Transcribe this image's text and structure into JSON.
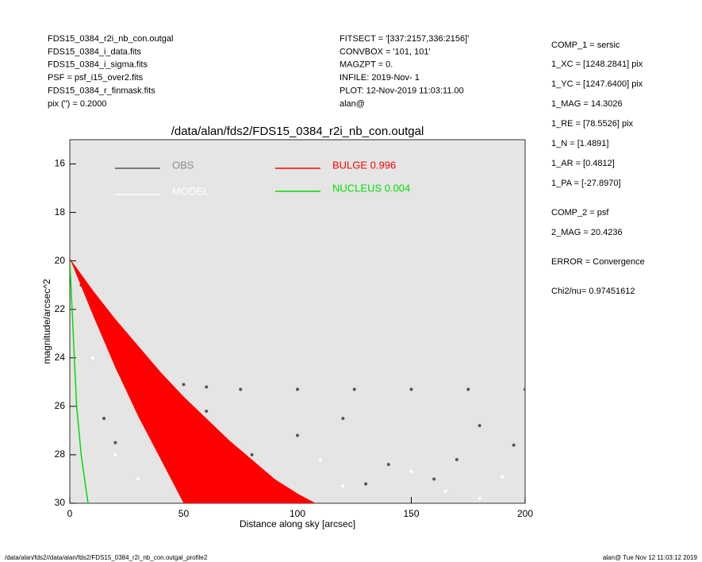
{
  "header": {
    "left_lines": [
      "FDS15_0384_r2i_nb_con.outgal",
      "FDS15_0384_i_data.fits",
      "FDS15_0384_i_sigma.fits",
      "PSF    = psf_i15_over2.fits",
      "FDS15_0384_r_finmask.fits",
      "pix (\") =  0.2000"
    ],
    "center_lines": [
      "FITSECT = '[337:2157,336:2156]'",
      "CONVBOX = '101, 101'",
      "MAGZPT  =              0.",
      "INFILE: 2019-Nov- 1",
      "PLOT: 12-Nov-2019 11:03:11.00",
      "alan@"
    ]
  },
  "info_panel": {
    "lines": [
      [
        "COMP_1  = sersic",
        57
      ],
      [
        "1_XC    = [1248.2841] pix",
        81
      ],
      [
        "1_YC    = [1247.6400] pix",
        106
      ],
      [
        "1_MAG   = 14.3026",
        131
      ],
      [
        "1_RE    = [78.5526] pix",
        156
      ],
      [
        "1_N     = [1.4891]",
        181
      ],
      [
        "1_AR    = [0.4812]",
        206
      ],
      [
        "1_PA    = [-27.8970]",
        231
      ],
      [
        "COMP_2  = psf",
        268
      ],
      [
        "2_MAG   = 20.4236",
        293
      ],
      [
        "ERROR   = Convergence",
        330
      ],
      [
        "Chi2/nu=      0.97451612",
        367
      ]
    ]
  },
  "chart_data": {
    "type": "scatter",
    "title": "/data/alan/fds2/FDS15_0384_r2i_nb_con.outgal",
    "xlabel": "Distance along sky [arcsec]",
    "ylabel": "magnitude/arcsec^2",
    "xlim": [
      0,
      200
    ],
    "xticks": [
      0,
      50,
      100,
      150,
      200
    ],
    "ylim": [
      30,
      15
    ],
    "yticks": [
      16,
      18,
      20,
      22,
      24,
      26,
      28,
      30
    ],
    "background": "#e5e5e5",
    "series": [
      {
        "name": "OBS",
        "color": "#555555",
        "style": "points",
        "x": [
          0,
          5,
          10,
          15,
          20,
          25,
          30,
          40,
          50,
          60,
          75,
          100,
          125,
          150,
          175,
          200,
          15,
          20,
          40,
          60,
          80,
          100,
          120,
          140,
          160,
          180,
          195,
          70,
          130,
          170
        ],
        "values": [
          20,
          21,
          22,
          22.8,
          23.4,
          23.9,
          24.2,
          24.8,
          25.1,
          25.2,
          25.3,
          25.3,
          25.3,
          25.3,
          25.3,
          25.3,
          26.5,
          27.5,
          27,
          26.2,
          28,
          27.2,
          26.5,
          28.4,
          29,
          26.8,
          27.6,
          29.4,
          29.2,
          28.2
        ]
      },
      {
        "name": "MODEL",
        "color": "#ffffff",
        "style": "points",
        "x": [
          10,
          20,
          30,
          45,
          60,
          90,
          120,
          150,
          180,
          190,
          110,
          165
        ],
        "values": [
          24,
          28,
          29,
          27.5,
          28.8,
          29.6,
          29.3,
          28.7,
          29.8,
          28.9,
          28.2,
          29.5
        ]
      },
      {
        "name": "BULGE  0.996",
        "color": "#ff0000",
        "style": "polygon",
        "x": [
          0,
          10,
          20,
          30,
          40,
          50,
          60,
          70,
          80,
          90,
          100,
          108,
          50,
          40,
          30,
          20,
          10
        ],
        "values": [
          19.9,
          21.2,
          22.4,
          23.5,
          24.6,
          25.6,
          26.5,
          27.4,
          28.2,
          29,
          29.6,
          30,
          30,
          28.2,
          26.4,
          24.4,
          22.2
        ]
      },
      {
        "name": "NUCLEUS  0.004",
        "color": "#00dd00",
        "style": "line",
        "x": [
          0,
          1,
          2,
          3,
          5,
          8
        ],
        "values": [
          20,
          22,
          24,
          26,
          28,
          30
        ]
      }
    ]
  },
  "footer": {
    "left": "/data/alan/fds2//data/alan/fds2/FDS15_0384_r2i_nb_con.outgal_profile2",
    "right": "alan@  Tue Nov 12 11:03:12 2019"
  }
}
